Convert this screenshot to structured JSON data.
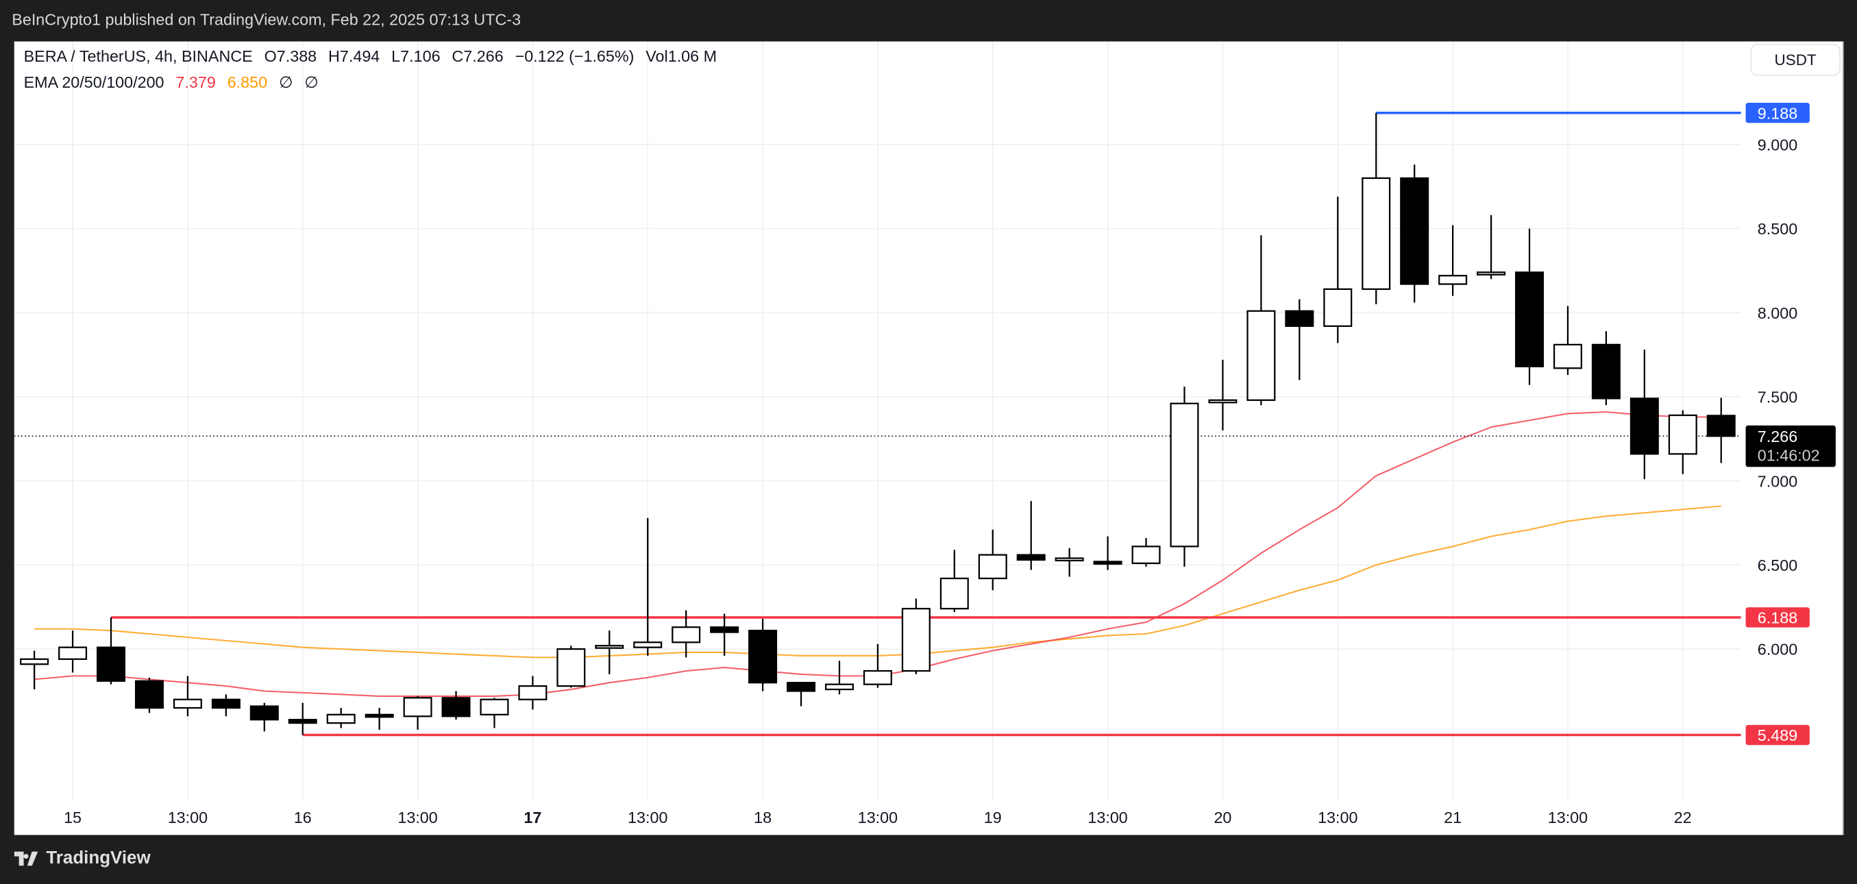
{
  "header": {
    "published": "BeInCrypto1 published on TradingView.com, Feb 22, 2025 07:13 UTC-3"
  },
  "legend": {
    "symbol": "BERA / TetherUS, 4h, BINANCE",
    "open": "O7.388",
    "high": "H7.494",
    "low": "L7.106",
    "close": "C7.266",
    "change": "−0.122 (−1.65%)",
    "volume": "Vol1.06 M",
    "ema_label": "EMA 20/50/100/200",
    "ema20": "7.379",
    "ema50": "6.850",
    "ema100": "∅",
    "ema200": "∅"
  },
  "currency_button": "USDT",
  "footer": {
    "brand": "TradingView"
  },
  "colors": {
    "up": "#ffffff",
    "down": "#000000",
    "ema20": "#f23645",
    "ema50": "#ff9800",
    "resistance": "#f23645",
    "high_line": "#2962ff"
  },
  "chart_data": {
    "type": "candlestick",
    "ylim": [
      5.1,
      9.6
    ],
    "y_ticks": [
      "9.000",
      "8.500",
      "8.000",
      "7.500",
      "7.000",
      "6.500",
      "6.000"
    ],
    "x_ticks": [
      {
        "label": "15",
        "candle": 1,
        "bold": false
      },
      {
        "label": "13:00",
        "candle": 4,
        "bold": false
      },
      {
        "label": "16",
        "candle": 7,
        "bold": false
      },
      {
        "label": "13:00",
        "candle": 10,
        "bold": false
      },
      {
        "label": "17",
        "candle": 13,
        "bold": true
      },
      {
        "label": "13:00",
        "candle": 16,
        "bold": false
      },
      {
        "label": "18",
        "candle": 19,
        "bold": false
      },
      {
        "label": "13:00",
        "candle": 22,
        "bold": false
      },
      {
        "label": "19",
        "candle": 25,
        "bold": false
      },
      {
        "label": "13:00",
        "candle": 28,
        "bold": false
      },
      {
        "label": "20",
        "candle": 31,
        "bold": false
      },
      {
        "label": "13:00",
        "candle": 34,
        "bold": false
      },
      {
        "label": "21",
        "candle": 37,
        "bold": false
      },
      {
        "label": "13:00",
        "candle": 40,
        "bold": false
      },
      {
        "label": "22",
        "candle": 43,
        "bold": false
      }
    ],
    "candles": [
      [
        5.91,
        5.99,
        5.76,
        5.94
      ],
      [
        5.94,
        6.11,
        5.86,
        6.01
      ],
      [
        6.01,
        6.188,
        5.79,
        5.81
      ],
      [
        5.81,
        5.83,
        5.62,
        5.65
      ],
      [
        5.65,
        5.84,
        5.6,
        5.7
      ],
      [
        5.7,
        5.73,
        5.6,
        5.65
      ],
      [
        5.66,
        5.68,
        5.51,
        5.58
      ],
      [
        5.58,
        5.68,
        5.489,
        5.56
      ],
      [
        5.56,
        5.65,
        5.53,
        5.61
      ],
      [
        5.61,
        5.65,
        5.52,
        5.6
      ],
      [
        5.6,
        5.72,
        5.52,
        5.71
      ],
      [
        5.71,
        5.75,
        5.58,
        5.6
      ],
      [
        5.61,
        5.71,
        5.53,
        5.7
      ],
      [
        5.7,
        5.84,
        5.64,
        5.78
      ],
      [
        5.78,
        6.02,
        5.77,
        6.0
      ],
      [
        6.01,
        6.11,
        5.85,
        6.02
      ],
      [
        6.01,
        6.78,
        5.96,
        6.04
      ],
      [
        6.04,
        6.23,
        5.95,
        6.13
      ],
      [
        6.13,
        6.21,
        5.96,
        6.1
      ],
      [
        6.11,
        6.18,
        5.75,
        5.8
      ],
      [
        5.8,
        5.78,
        5.66,
        5.75
      ],
      [
        5.76,
        5.93,
        5.73,
        5.79
      ],
      [
        5.79,
        6.03,
        5.77,
        5.87
      ],
      [
        5.87,
        6.3,
        5.85,
        6.24
      ],
      [
        6.24,
        6.59,
        6.22,
        6.42
      ],
      [
        6.42,
        6.71,
        6.35,
        6.56
      ],
      [
        6.56,
        6.88,
        6.47,
        6.53
      ],
      [
        6.54,
        6.6,
        6.43,
        6.54
      ],
      [
        6.52,
        6.67,
        6.47,
        6.51
      ],
      [
        6.51,
        6.66,
        6.49,
        6.61
      ],
      [
        6.61,
        7.56,
        6.49,
        7.46
      ],
      [
        7.47,
        7.72,
        7.3,
        7.48
      ],
      [
        7.48,
        8.46,
        7.45,
        8.01
      ],
      [
        8.01,
        8.08,
        7.6,
        7.92
      ],
      [
        7.92,
        8.69,
        7.82,
        8.14
      ],
      [
        8.14,
        9.188,
        8.05,
        8.8
      ],
      [
        8.8,
        8.88,
        8.06,
        8.17
      ],
      [
        8.17,
        8.52,
        8.1,
        8.22
      ],
      [
        8.24,
        8.58,
        8.2,
        8.24
      ],
      [
        8.24,
        8.5,
        7.57,
        7.68
      ],
      [
        7.67,
        8.04,
        7.63,
        7.81
      ],
      [
        7.81,
        7.89,
        7.45,
        7.49
      ],
      [
        7.49,
        7.78,
        7.01,
        7.16
      ],
      [
        7.16,
        7.42,
        7.04,
        7.39
      ],
      [
        7.388,
        7.494,
        7.106,
        7.266
      ]
    ],
    "ema20": [
      5.82,
      5.84,
      5.84,
      5.82,
      5.8,
      5.78,
      5.75,
      5.74,
      5.73,
      5.72,
      5.72,
      5.72,
      5.72,
      5.73,
      5.76,
      5.8,
      5.83,
      5.87,
      5.89,
      5.87,
      5.85,
      5.84,
      5.84,
      5.88,
      5.94,
      5.99,
      6.03,
      6.07,
      6.12,
      6.16,
      6.27,
      6.41,
      6.57,
      6.71,
      6.84,
      7.03,
      7.13,
      7.23,
      7.32,
      7.36,
      7.4,
      7.41,
      7.39,
      7.38,
      7.379
    ],
    "ema50": [
      6.12,
      6.12,
      6.11,
      6.09,
      6.07,
      6.05,
      6.03,
      6.01,
      6.0,
      5.99,
      5.98,
      5.97,
      5.96,
      5.95,
      5.95,
      5.96,
      5.97,
      5.98,
      5.98,
      5.97,
      5.96,
      5.96,
      5.96,
      5.97,
      5.99,
      6.01,
      6.04,
      6.06,
      6.08,
      6.09,
      6.14,
      6.21,
      6.28,
      6.35,
      6.41,
      6.5,
      6.56,
      6.61,
      6.67,
      6.71,
      6.76,
      6.79,
      6.81,
      6.83,
      6.85
    ],
    "levels": [
      {
        "name": "high",
        "value": 9.188,
        "label": "9.188",
        "from_candle": 35,
        "color": "#2962ff"
      },
      {
        "name": "resistance",
        "value": 6.188,
        "label": "6.188",
        "from_candle": 2,
        "color": "#f23645"
      },
      {
        "name": "support",
        "value": 5.489,
        "label": "5.489",
        "from_candle": 7,
        "color": "#f23645"
      }
    ],
    "last_price": {
      "value": 7.266,
      "label": "7.266",
      "countdown": "01:46:02"
    }
  }
}
